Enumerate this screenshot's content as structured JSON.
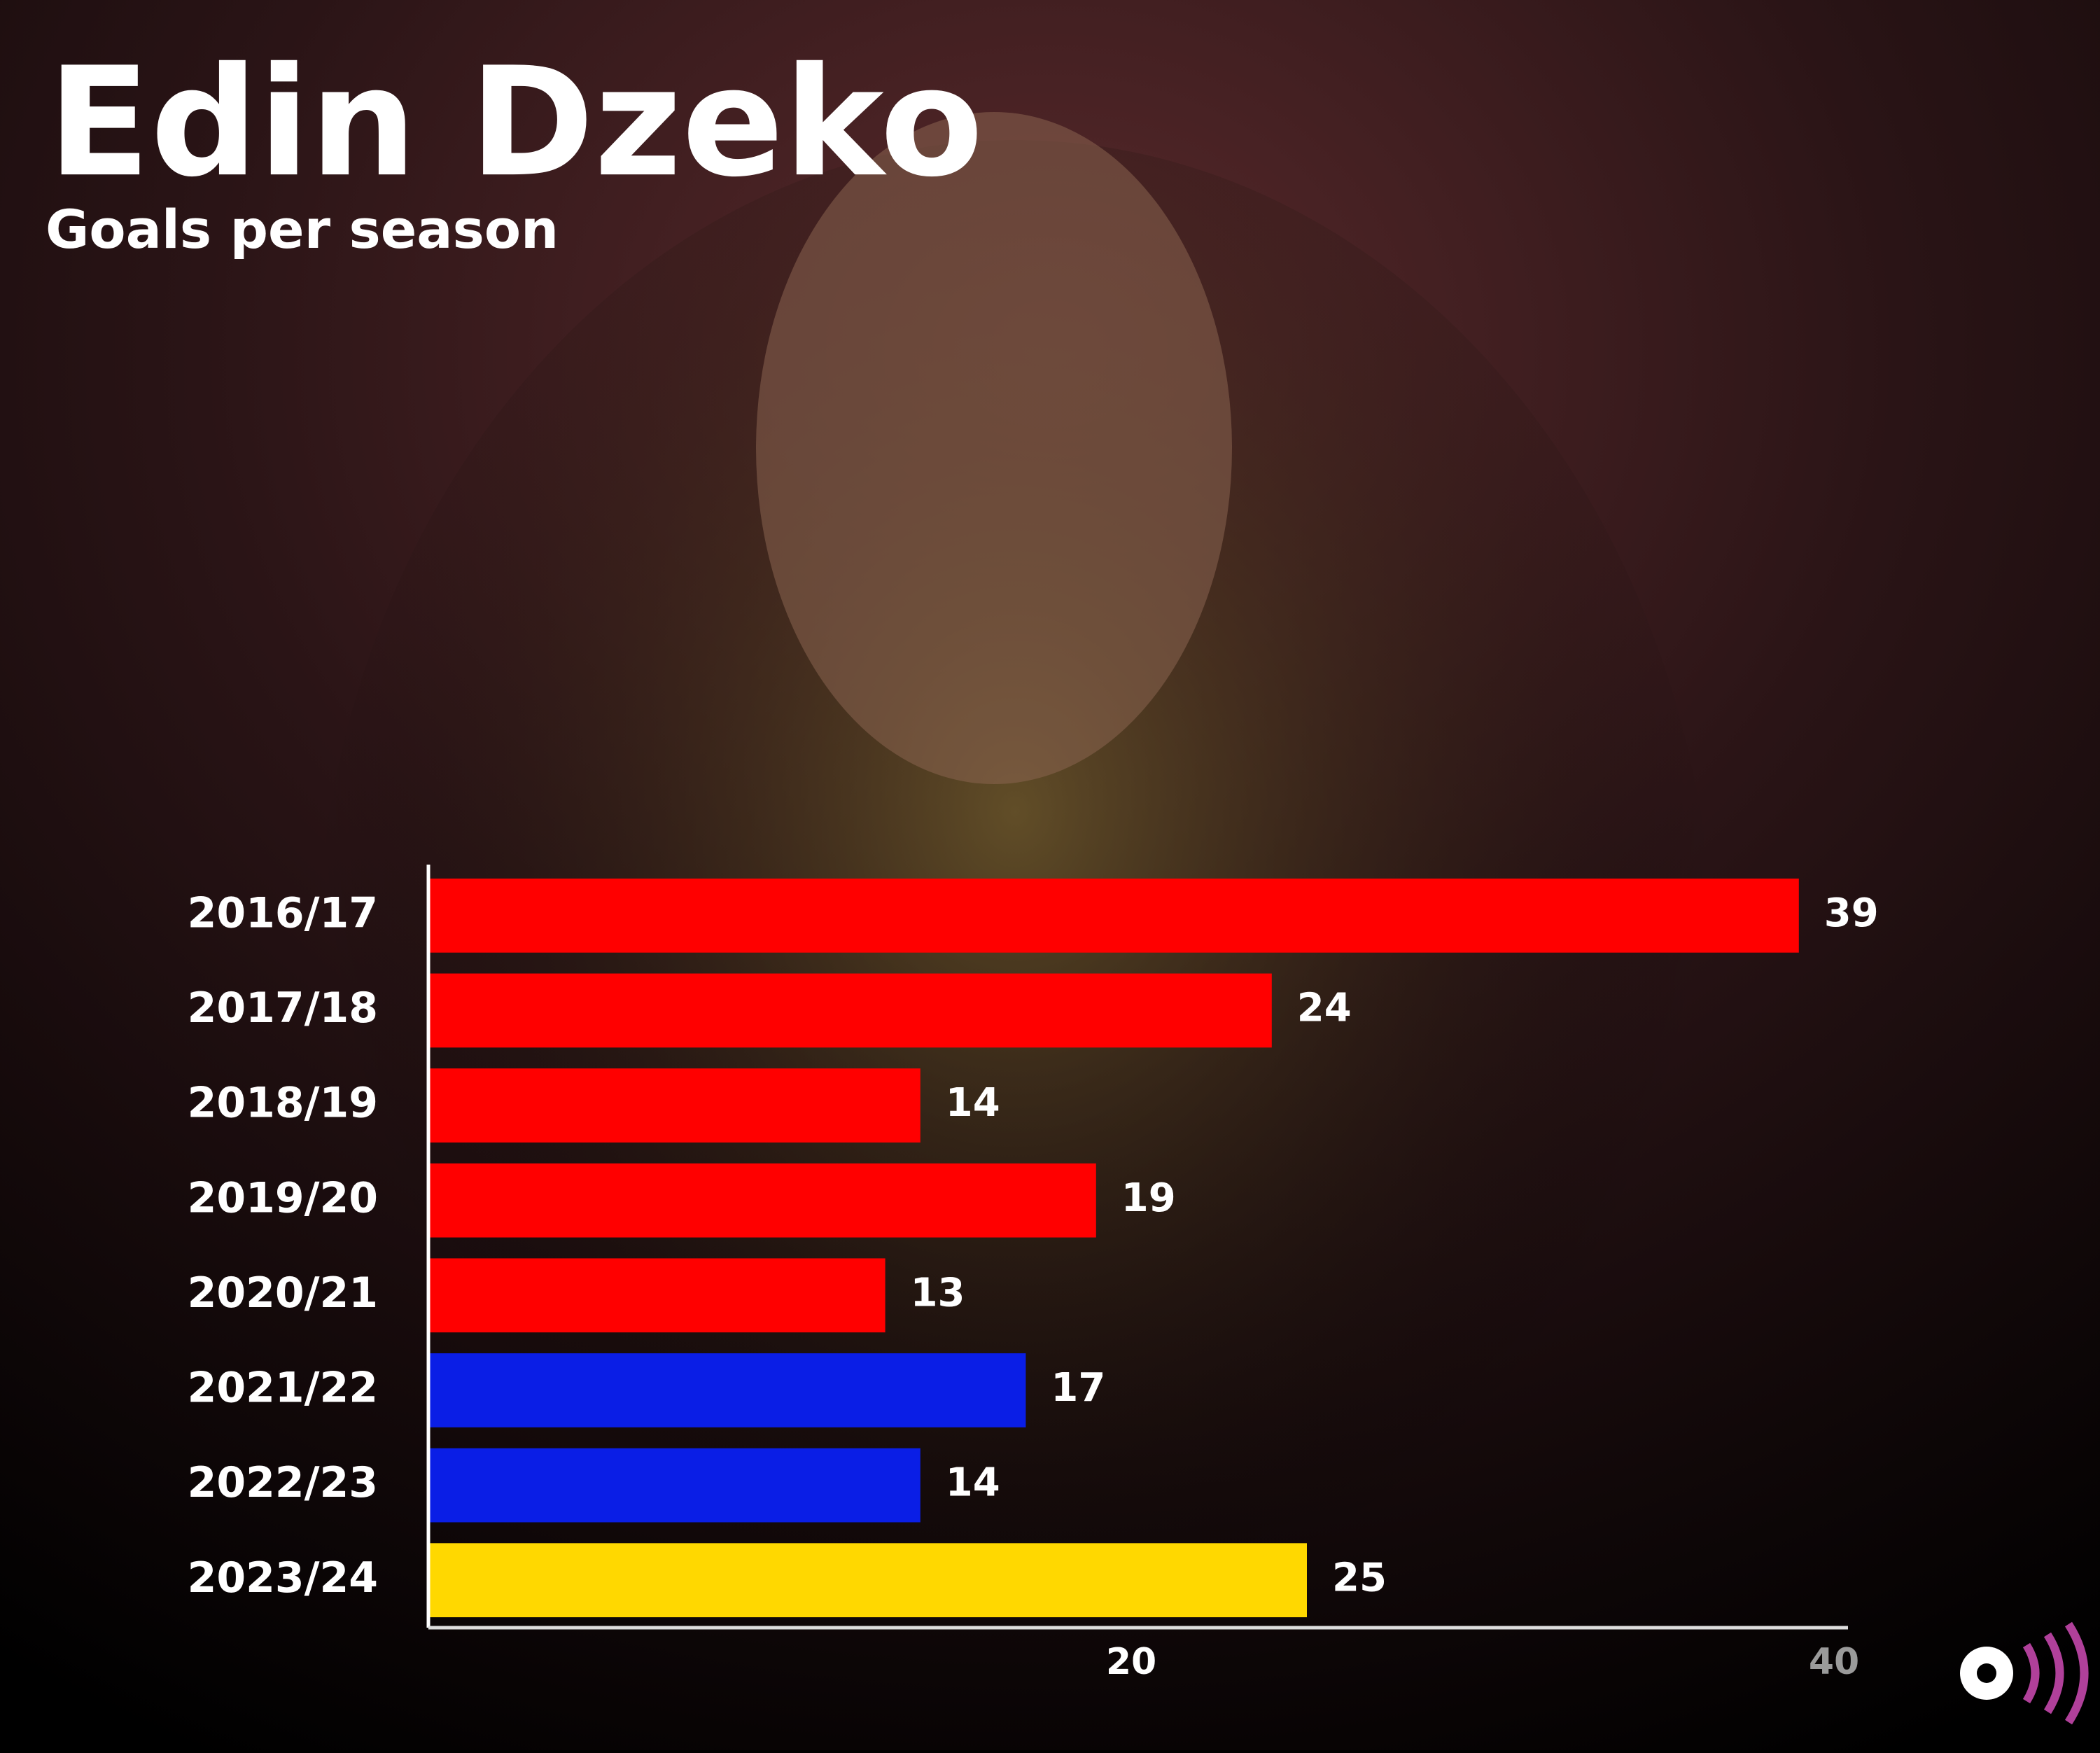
{
  "chart_data": {
    "type": "hbar",
    "title": "Edin Dzeko",
    "subtitle": "Goals per season",
    "categories": [
      "2016/17",
      "2017/18",
      "2018/19",
      "2019/20",
      "2020/21",
      "2021/22",
      "2022/23",
      "2023/24"
    ],
    "values": [
      39,
      24,
      14,
      19,
      13,
      17,
      14,
      25
    ],
    "colors": [
      "#ff0000",
      "#ff0000",
      "#ff0000",
      "#ff0000",
      "#ff0000",
      "#0a1ee6",
      "#0a1ee6",
      "#ffd800"
    ],
    "xlim": [
      0,
      40
    ],
    "xticks": [
      20,
      40
    ],
    "grid": false
  }
}
